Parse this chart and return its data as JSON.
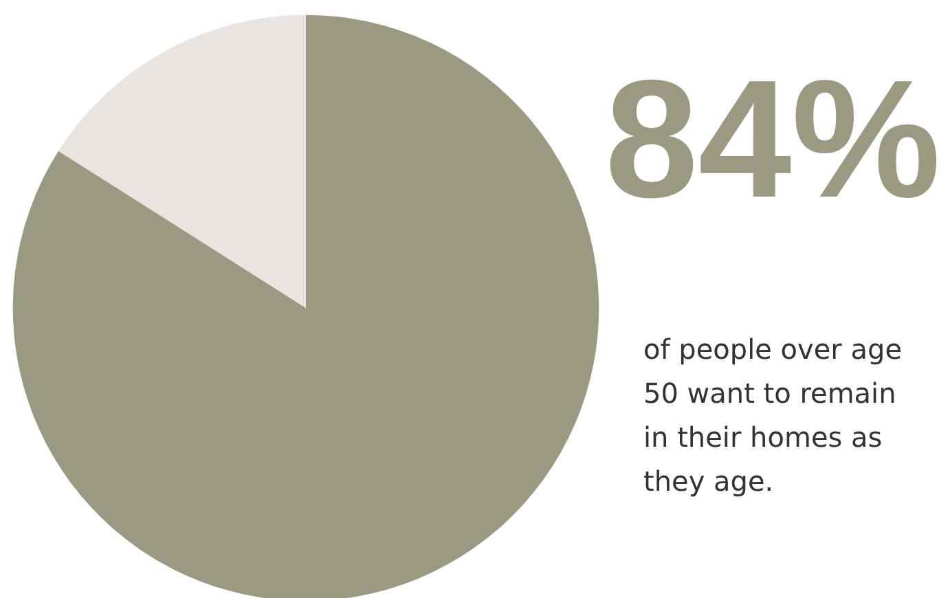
{
  "chart_data": {
    "type": "pie",
    "categories": [
      null,
      null
    ],
    "values": [
      84,
      16
    ],
    "colors": [
      "#9a9a82",
      "#e8e4e0"
    ],
    "annotations": [
      "84%",
      "of people over age 50 want to remain in their homes as they age."
    ]
  }
}
